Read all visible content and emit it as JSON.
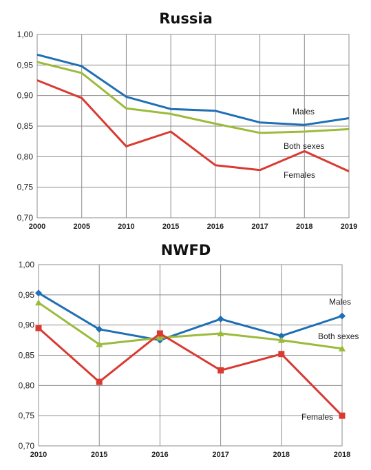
{
  "chart_data": [
    {
      "type": "line",
      "title": "Russia",
      "categories": [
        "2000",
        "2005",
        "2010",
        "2015",
        "2016",
        "2017",
        "2018",
        "2019"
      ],
      "ylim": [
        0.7,
        1.0
      ],
      "yticks": [
        "0,70",
        "0,75",
        "0,80",
        "0,85",
        "0,90",
        "0,95",
        "1,00"
      ],
      "grid": true,
      "markers": false,
      "series": [
        {
          "name": "Males",
          "color": "#1f6fb5",
          "values": [
            0.967,
            0.948,
            0.898,
            0.878,
            0.875,
            0.856,
            0.852,
            0.863
          ]
        },
        {
          "name": "Both sexes",
          "color": "#9bbb3a",
          "values": [
            0.955,
            0.937,
            0.879,
            0.87,
            0.854,
            0.839,
            0.841,
            0.845
          ]
        },
        {
          "name": "Females",
          "color": "#d93a32",
          "values": [
            0.925,
            0.896,
            0.817,
            0.841,
            0.786,
            0.778,
            0.809,
            0.776
          ]
        }
      ]
    },
    {
      "type": "line",
      "title": "NWFD",
      "categories": [
        "2010",
        "2015",
        "2016",
        "2017",
        "2018",
        "2018"
      ],
      "ylim": [
        0.7,
        1.0
      ],
      "yticks": [
        "0,70",
        "0,75",
        "0,80",
        "0,85",
        "0,90",
        "0,95",
        "1,00"
      ],
      "grid": true,
      "markers": true,
      "series": [
        {
          "name": "Males",
          "color": "#1f6fb5",
          "marker": "diamond",
          "values": [
            0.953,
            0.893,
            0.875,
            0.91,
            0.882,
            0.915
          ]
        },
        {
          "name": "Both sexes",
          "color": "#9bbb3a",
          "marker": "triangle",
          "values": [
            0.937,
            0.868,
            0.879,
            0.886,
            0.875,
            0.861
          ]
        },
        {
          "name": "Females",
          "color": "#d93a32",
          "marker": "square",
          "values": [
            0.895,
            0.806,
            0.886,
            0.825,
            0.852,
            0.75
          ]
        }
      ]
    }
  ]
}
